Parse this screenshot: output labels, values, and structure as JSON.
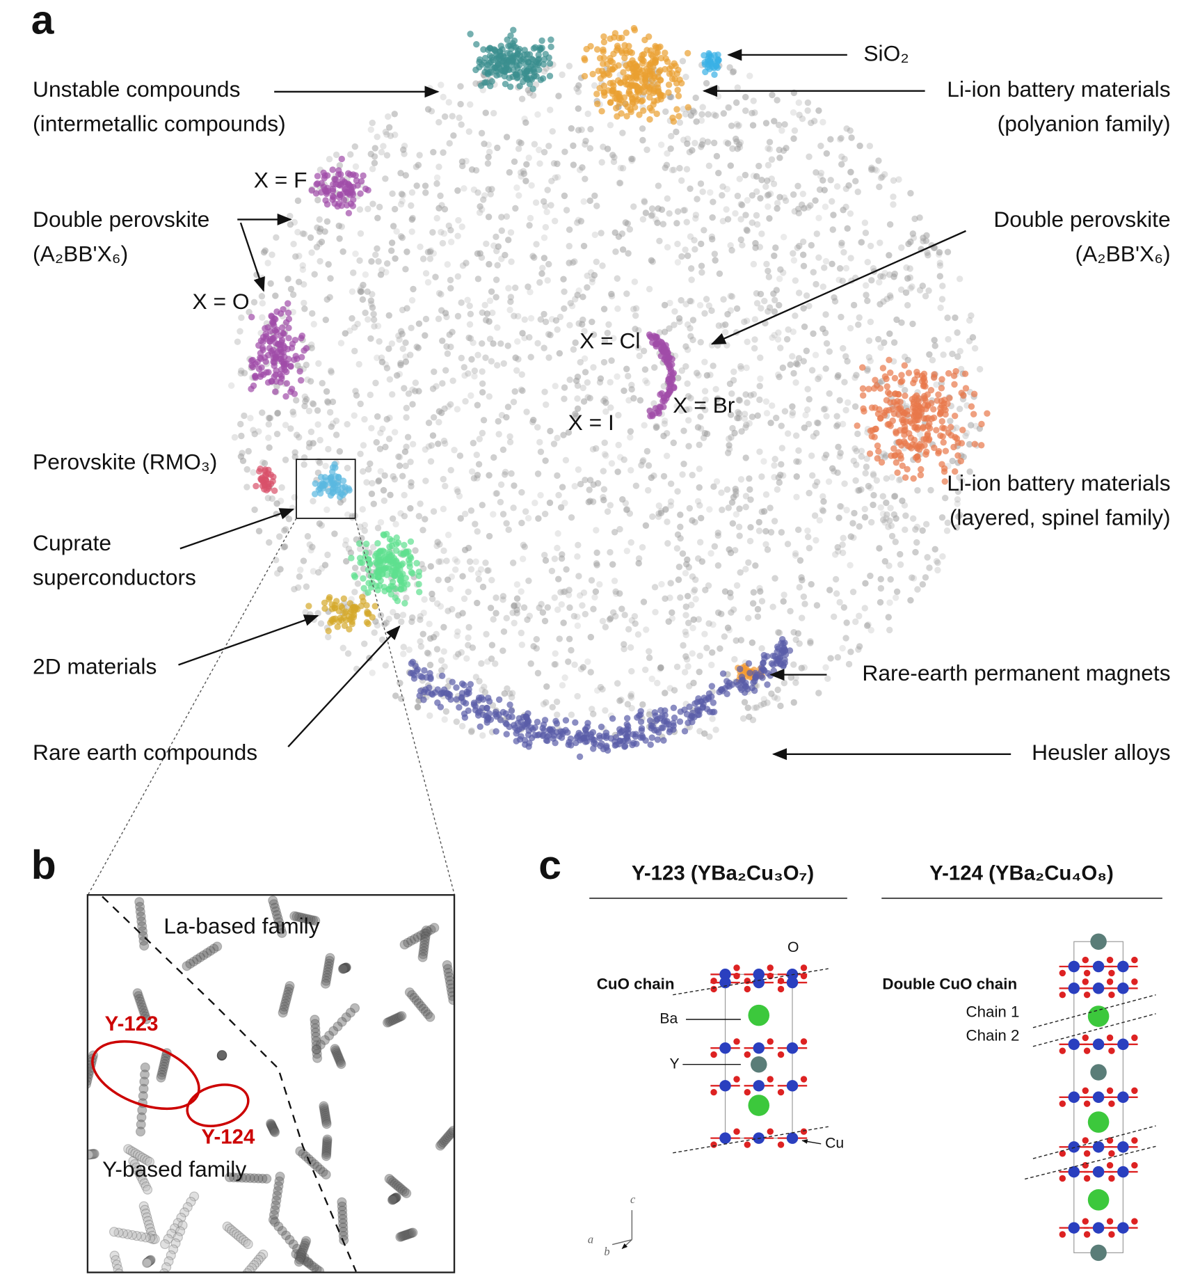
{
  "panel_a": {
    "label": "a",
    "annotations": [
      {
        "lines": [
          "Unstable compounds",
          "(intermetallic compounds)"
        ]
      },
      {
        "lines": [
          "SiO₂"
        ]
      },
      {
        "lines": [
          "Li-ion battery materials",
          "(polyanion family)"
        ]
      },
      {
        "lines": [
          "X = F"
        ]
      },
      {
        "lines": [
          "Double perovskite",
          "(A₂BB'X₆)"
        ]
      },
      {
        "lines": [
          "X = O"
        ]
      },
      {
        "lines": [
          "Double perovskite",
          "(A₂BB'X₆)"
        ]
      },
      {
        "lines": [
          "X = Cl"
        ]
      },
      {
        "lines": [
          "X = Br"
        ]
      },
      {
        "lines": [
          "X = I"
        ]
      },
      {
        "lines": [
          "Perovskite (RMO₃)"
        ]
      },
      {
        "lines": [
          "Cuprate",
          "superconductors"
        ]
      },
      {
        "lines": [
          "Li-ion battery materials",
          "(layered, spinel family)"
        ]
      },
      {
        "lines": [
          "2D materials"
        ]
      },
      {
        "lines": [
          "Rare-earth permanent magnets"
        ]
      },
      {
        "lines": [
          "Rare earth compounds"
        ]
      },
      {
        "lines": [
          "Heusler alloys"
        ]
      }
    ]
  },
  "panel_b": {
    "label": "b",
    "texts": [
      "La-based family",
      "Y-123",
      "Y-124",
      "Y-based family"
    ]
  },
  "panel_c": {
    "label": "c",
    "structures": [
      {
        "title": "Y-123 (YBa₂Cu₃O₇)",
        "labels": [
          "O",
          "CuO chain",
          "Ba",
          "Y",
          "Cu"
        ]
      },
      {
        "title": "Y-124 (YBa₂Cu₄O₈)",
        "labels": [
          "Double CuO chain",
          "Chain 1",
          "Chain 2"
        ]
      }
    ],
    "axes": [
      "c",
      "a",
      "b"
    ]
  }
}
